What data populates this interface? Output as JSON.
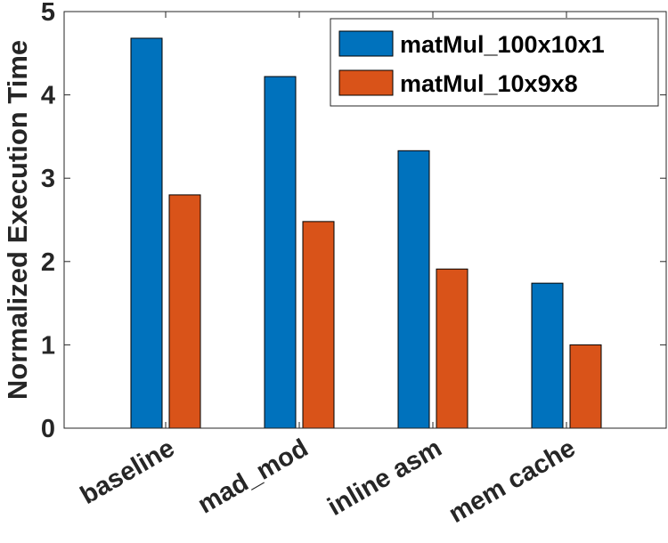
{
  "chart_data": {
    "type": "bar",
    "categories": [
      "baseline",
      "mad_mod",
      "inline asm",
      "mem cache"
    ],
    "series": [
      {
        "name": "matMul_100x10x1",
        "values": [
          4.68,
          4.22,
          3.33,
          1.74
        ],
        "color": "#0072BD"
      },
      {
        "name": "matMul_10x9x8",
        "values": [
          2.8,
          2.48,
          1.91,
          1.0
        ],
        "color": "#D95319"
      }
    ],
    "title": "",
    "xlabel": "",
    "ylabel": "Normalized Execution Time",
    "ylim": [
      0,
      5
    ],
    "yticks": [
      "0",
      "1",
      "2",
      "3",
      "4",
      "5"
    ],
    "grid": false,
    "legend_position": "top-right"
  }
}
